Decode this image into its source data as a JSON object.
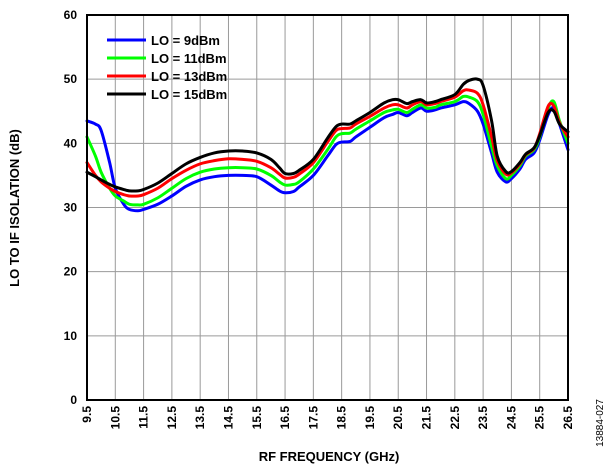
{
  "chart_data": {
    "type": "line",
    "xlabel": "RF FREQUENCY (GHz)",
    "ylabel": "LO TO IF ISOLATION (dB)",
    "xlim": [
      9.5,
      26.5
    ],
    "ylim": [
      0,
      60
    ],
    "x_ticks": [
      "9.5",
      "10.5",
      "11.5",
      "12.5",
      "13.5",
      "14.5",
      "15.5",
      "16.5",
      "17.5",
      "18.5",
      "19.5",
      "20.5",
      "21.5",
      "22.5",
      "23.5",
      "24.5",
      "25.5",
      "26.5"
    ],
    "y_ticks": [
      "0",
      "10",
      "20",
      "30",
      "40",
      "50",
      "60"
    ],
    "grid": true,
    "legend_position": "top-left",
    "series": [
      {
        "name": "LO = 9dBm",
        "color": "#0000ff",
        "x": [
          9.5,
          9.8,
          10.0,
          10.3,
          10.5,
          10.8,
          11.0,
          11.3,
          11.5,
          12.0,
          12.5,
          13.0,
          13.5,
          14.0,
          14.5,
          15.0,
          15.5,
          16.0,
          16.3,
          16.5,
          16.8,
          17.0,
          17.5,
          18.0,
          18.3,
          18.5,
          18.8,
          19.0,
          19.5,
          20.0,
          20.3,
          20.5,
          20.8,
          21.0,
          21.3,
          21.5,
          21.8,
          22.0,
          22.5,
          22.8,
          23.0,
          23.3,
          23.5,
          23.8,
          24.0,
          24.3,
          24.5,
          24.8,
          25.0,
          25.3,
          25.5,
          25.8,
          26.0,
          26.2,
          26.5
        ],
        "values": [
          43.5,
          43.0,
          42.0,
          37.0,
          33.0,
          30.5,
          29.7,
          29.5,
          29.7,
          30.5,
          31.8,
          33.3,
          34.3,
          34.8,
          35.0,
          35.0,
          34.8,
          33.5,
          32.6,
          32.3,
          32.5,
          33.2,
          35.0,
          38.0,
          39.8,
          40.2,
          40.3,
          41.0,
          42.5,
          44.0,
          44.5,
          44.8,
          44.3,
          44.8,
          45.5,
          45.0,
          45.2,
          45.5,
          46.0,
          46.5,
          46.2,
          45.0,
          43.0,
          38.5,
          35.5,
          34.0,
          34.5,
          36.0,
          37.5,
          38.5,
          40.5,
          44.5,
          45.5,
          43.0,
          39.0
        ]
      },
      {
        "name": "LO = 11dBm",
        "color": "#00ff00",
        "x": [
          9.5,
          9.8,
          10.0,
          10.3,
          10.5,
          10.8,
          11.0,
          11.3,
          11.5,
          12.0,
          12.5,
          13.0,
          13.5,
          14.0,
          14.5,
          15.0,
          15.5,
          16.0,
          16.3,
          16.5,
          16.8,
          17.0,
          17.5,
          18.0,
          18.3,
          18.5,
          18.8,
          19.0,
          19.5,
          20.0,
          20.3,
          20.5,
          20.8,
          21.0,
          21.3,
          21.5,
          21.8,
          22.0,
          22.5,
          22.8,
          23.0,
          23.3,
          23.5,
          23.8,
          24.0,
          24.3,
          24.5,
          24.8,
          25.0,
          25.3,
          25.5,
          25.8,
          26.0,
          26.2,
          26.5
        ],
        "values": [
          41.0,
          38.0,
          35.5,
          33.0,
          31.8,
          31.0,
          30.5,
          30.4,
          30.5,
          31.5,
          33.0,
          34.5,
          35.5,
          36.0,
          36.2,
          36.2,
          36.0,
          35.0,
          34.0,
          33.5,
          33.6,
          34.0,
          36.0,
          39.0,
          41.0,
          41.5,
          41.6,
          42.2,
          43.5,
          44.8,
          45.2,
          45.3,
          44.8,
          45.3,
          46.0,
          45.5,
          45.6,
          46.0,
          46.5,
          47.3,
          47.2,
          46.5,
          44.5,
          39.5,
          36.5,
          34.5,
          35.0,
          36.5,
          38.0,
          39.0,
          41.0,
          45.5,
          46.5,
          43.5,
          40.0
        ]
      },
      {
        "name": "LO = 13dBm",
        "color": "#ff0000",
        "x": [
          9.5,
          9.8,
          10.0,
          10.3,
          10.5,
          10.8,
          11.0,
          11.3,
          11.5,
          12.0,
          12.5,
          13.0,
          13.5,
          14.0,
          14.5,
          15.0,
          15.5,
          16.0,
          16.3,
          16.5,
          16.8,
          17.0,
          17.5,
          18.0,
          18.3,
          18.5,
          18.8,
          19.0,
          19.5,
          20.0,
          20.3,
          20.5,
          20.8,
          21.0,
          21.3,
          21.5,
          21.8,
          22.0,
          22.5,
          22.8,
          23.0,
          23.3,
          23.5,
          23.8,
          24.0,
          24.3,
          24.5,
          24.8,
          25.0,
          25.3,
          25.5,
          25.8,
          26.0,
          26.2,
          26.5
        ],
        "values": [
          37.0,
          35.0,
          34.0,
          33.0,
          32.5,
          32.0,
          31.8,
          31.8,
          32.0,
          33.0,
          34.5,
          35.8,
          36.8,
          37.3,
          37.6,
          37.5,
          37.2,
          36.2,
          35.2,
          34.6,
          34.7,
          35.2,
          37.0,
          40.2,
          42.0,
          42.3,
          42.4,
          43.0,
          44.2,
          45.5,
          46.0,
          46.0,
          45.5,
          46.0,
          46.5,
          46.0,
          46.2,
          46.5,
          47.2,
          48.2,
          48.3,
          47.8,
          46.0,
          41.0,
          37.3,
          35.2,
          35.4,
          36.8,
          38.2,
          39.2,
          41.5,
          45.8,
          45.8,
          43.2,
          41.0
        ]
      },
      {
        "name": "LO = 15dBm",
        "color": "#000000",
        "x": [
          9.5,
          9.8,
          10.0,
          10.3,
          10.5,
          10.8,
          11.0,
          11.3,
          11.5,
          12.0,
          12.5,
          13.0,
          13.5,
          14.0,
          14.5,
          15.0,
          15.5,
          16.0,
          16.3,
          16.5,
          16.8,
          17.0,
          17.5,
          18.0,
          18.3,
          18.5,
          18.8,
          19.0,
          19.5,
          20.0,
          20.3,
          20.5,
          20.8,
          21.0,
          21.3,
          21.5,
          21.8,
          22.0,
          22.5,
          22.8,
          23.0,
          23.3,
          23.5,
          23.8,
          24.0,
          24.3,
          24.5,
          24.8,
          25.0,
          25.3,
          25.5,
          25.8,
          26.0,
          26.2,
          26.5
        ],
        "values": [
          35.5,
          34.8,
          34.3,
          33.6,
          33.2,
          32.8,
          32.6,
          32.6,
          32.8,
          33.8,
          35.3,
          36.8,
          37.8,
          38.5,
          38.8,
          38.8,
          38.5,
          37.5,
          36.2,
          35.3,
          35.3,
          35.8,
          37.5,
          40.8,
          42.6,
          43.0,
          43.0,
          43.5,
          44.8,
          46.3,
          46.8,
          46.8,
          46.2,
          46.5,
          46.8,
          46.3,
          46.5,
          46.8,
          47.6,
          49.2,
          49.8,
          50.0,
          49.0,
          43.5,
          38.0,
          35.6,
          35.6,
          37.0,
          38.3,
          39.3,
          41.2,
          44.8,
          45.0,
          43.0,
          41.8
        ]
      }
    ]
  },
  "figure_id": "13884-027"
}
